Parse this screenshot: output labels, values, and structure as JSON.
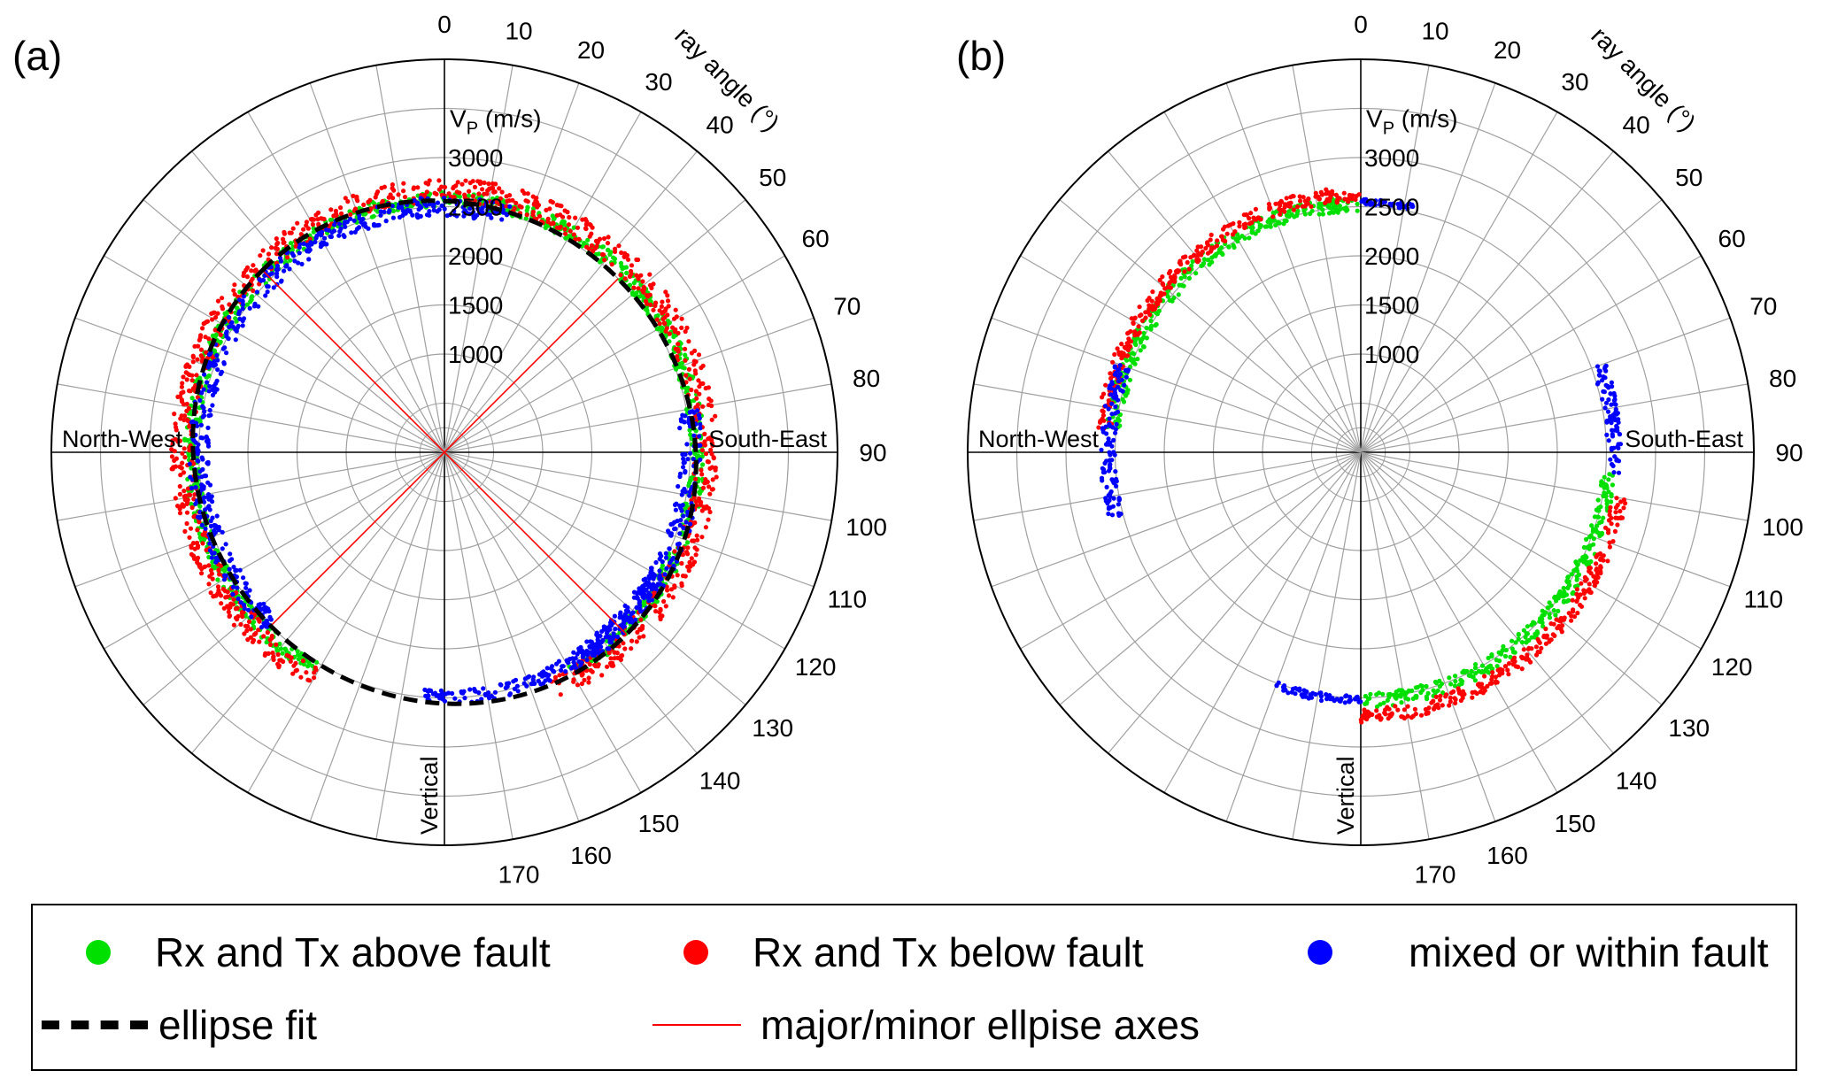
{
  "panels": [
    {
      "label": "(a)"
    },
    {
      "label": "(b)"
    }
  ],
  "legend": {
    "above": "Rx and Tx above fault",
    "below": "Rx and Tx below fault",
    "mixed": "mixed or within fault",
    "ellipse_fit": "ellipse fit",
    "axes": "major/minor ellpise axes"
  },
  "colors": {
    "above": "#00e000",
    "below": "#ff0000",
    "mixed": "#0000ff",
    "ellipse": "#000000",
    "axes": "#ff0000",
    "grid": "#a0a0a0"
  },
  "chart_data": [
    {
      "type": "scatter",
      "coordinate_system": "polar",
      "panel": "(a)",
      "angular_axis_label": "ray angle (°)",
      "angular_ticks": [
        0,
        10,
        20,
        30,
        40,
        50,
        60,
        70,
        80,
        90,
        100,
        110,
        120,
        130,
        140,
        150,
        160,
        170
      ],
      "radial_axis_label": "V_P (m/s)",
      "radial_ticks": [
        1000,
        1500,
        2000,
        2500,
        3000
      ],
      "radial_range": [
        0,
        4000
      ],
      "direction_labels": {
        "left": "North-West",
        "right": "South-East",
        "bottom": "Vertical"
      },
      "series": [
        {
          "name": "Rx and Tx above fault",
          "color": "above",
          "angle_range": [
            210,
            510
          ],
          "vp_range": [
            2500,
            2650
          ]
        },
        {
          "name": "Rx and Tx below fault",
          "color": "below",
          "angle_range": [
            210,
            515
          ],
          "vp_range": [
            2540,
            2780
          ]
        },
        {
          "name": "mixed or within fault",
          "color": "mixed",
          "arcs": [
            {
              "angle_range": [
                225,
                375
              ],
              "vp_range": [
                2400,
                2600
              ]
            },
            {
              "angle_range": [
                440,
                510
              ],
              "vp_range": [
                2400,
                2620
              ]
            },
            {
              "angle_range": [
                480,
                545
              ],
              "vp_range": [
                2420,
                2560
              ]
            }
          ]
        }
      ],
      "ellipse_fit": {
        "major_axis_vp": 2620,
        "minor_axis_vp": 2500,
        "major_axis_angle": 315
      },
      "grid": true
    },
    {
      "type": "scatter",
      "coordinate_system": "polar",
      "panel": "(b)",
      "angular_axis_label": "ray angle (°)",
      "angular_ticks": [
        0,
        10,
        20,
        30,
        40,
        50,
        60,
        70,
        80,
        90,
        100,
        110,
        120,
        130,
        140,
        150,
        160,
        170
      ],
      "radial_axis_label": "V_P (m/s)",
      "radial_ticks": [
        1000,
        1500,
        2000,
        2500,
        3000
      ],
      "radial_range": [
        0,
        4000
      ],
      "direction_labels": {
        "left": "North-West",
        "right": "South-East",
        "bottom": "Vertical"
      },
      "series": [
        {
          "name": "Rx and Tx above fault",
          "color": "above",
          "arcs": [
            {
              "angle_range": [
                275,
                360
              ],
              "vp_range": [
                2450,
                2600
              ]
            },
            {
              "angle_range": [
                95,
                180
              ],
              "vp_range": [
                2450,
                2600
              ]
            }
          ]
        },
        {
          "name": "Rx and Tx below fault",
          "color": "below",
          "arcs": [
            {
              "angle_range": [
                275,
                360
              ],
              "vp_range": [
                2550,
                2700
              ]
            },
            {
              "angle_range": [
                100,
                180
              ],
              "vp_range": [
                2600,
                2750
              ]
            }
          ]
        },
        {
          "name": "mixed or within fault",
          "color": "mixed",
          "arcs": [
            {
              "angle_range": [
                0,
                12
              ],
              "vp_range": [
                2520,
                2580
              ]
            },
            {
              "angle_range": [
                70,
                95
              ],
              "vp_range": [
                2500,
                2650
              ]
            },
            {
              "angle_range": [
                180,
                200
              ],
              "vp_range": [
                2480,
                2560
              ]
            },
            {
              "angle_range": [
                255,
                290
              ],
              "vp_range": [
                2500,
                2650
              ]
            }
          ]
        }
      ],
      "grid": true
    }
  ]
}
